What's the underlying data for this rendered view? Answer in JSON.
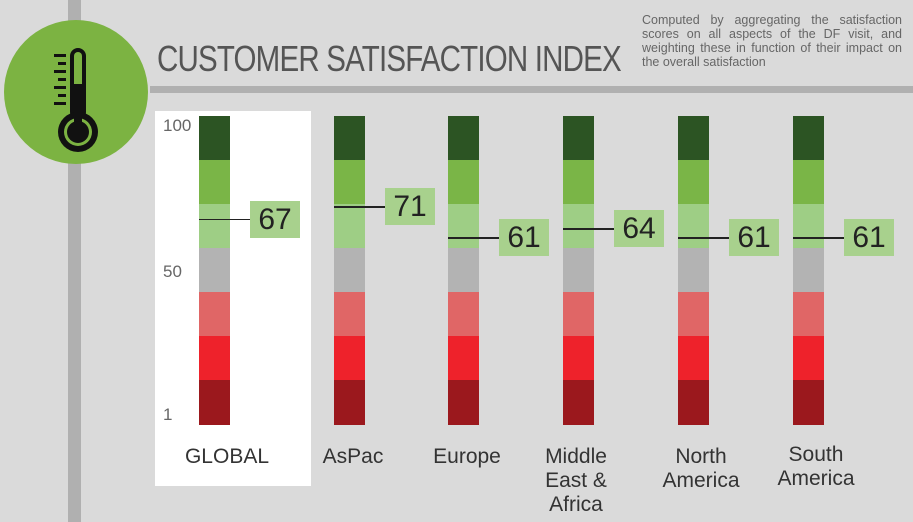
{
  "header": {
    "title": "CUSTOMER SATISFACTION INDEX",
    "subtitle": "Computed by aggregating the satisfaction scores on all aspects of the DF visit, and weighting these in function of their impact on the overall satisfaction"
  },
  "icon": "thermometer-icon",
  "colors": {
    "band_colors": [
      "#2c5423",
      "#7ab547",
      "#9ece85",
      "#b3b3b3",
      "#e06666",
      "#ee222b",
      "#9b181d"
    ],
    "label_bg": "#a8d18d",
    "circle": "#7cb342"
  },
  "chart_data": {
    "type": "bar",
    "categories": [
      "GLOBAL",
      "AsPac",
      "Europe",
      "Middle East & Africa",
      "North America",
      "South America"
    ],
    "values": [
      67,
      71,
      61,
      64,
      61,
      61
    ],
    "value_labels": [
      "67",
      "71",
      "61",
      "64",
      "61",
      "61"
    ],
    "y_ticks": [
      "100",
      "50",
      "1"
    ],
    "ylim": [
      1,
      100
    ],
    "bands": 7,
    "highlighted": "GLOBAL"
  }
}
